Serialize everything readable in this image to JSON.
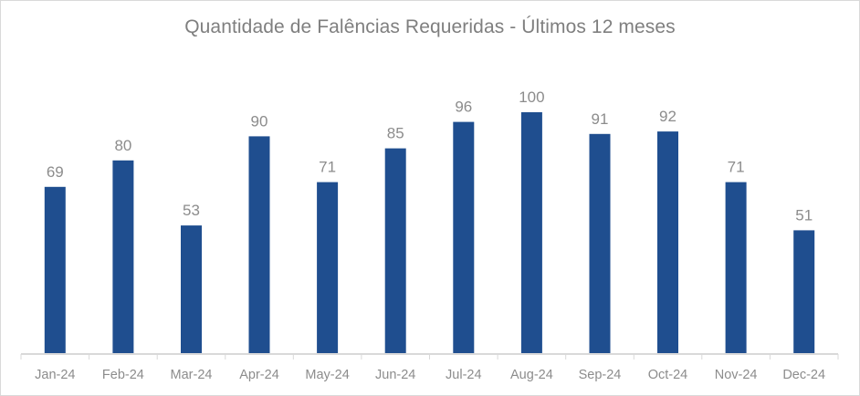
{
  "chart_data": {
    "type": "bar",
    "title": "Quantidade de Falências Requeridas - Últimos 12 meses",
    "xlabel": "",
    "ylabel": "",
    "categories": [
      "Jan-24",
      "Feb-24",
      "Mar-24",
      "Apr-24",
      "May-24",
      "Jun-24",
      "Jul-24",
      "Aug-24",
      "Sep-24",
      "Oct-24",
      "Nov-24",
      "Dec-24"
    ],
    "values": [
      69,
      80,
      53,
      90,
      71,
      85,
      96,
      100,
      91,
      92,
      71,
      51
    ],
    "ylim": [
      0,
      100
    ],
    "grid": false,
    "legend": null,
    "data_labels": true,
    "bar_color": "#1f4e8f"
  }
}
